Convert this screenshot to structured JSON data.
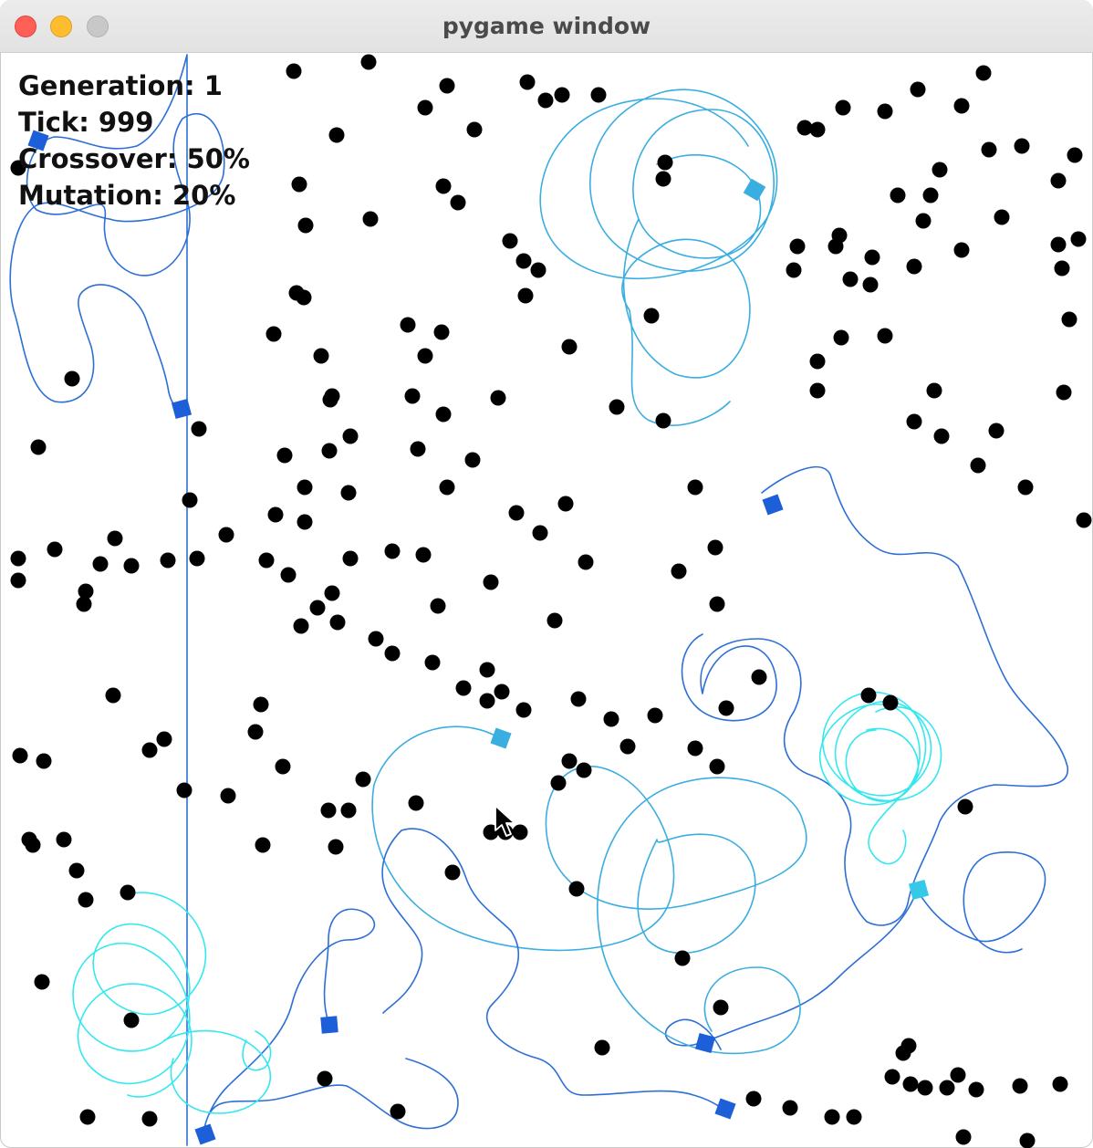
{
  "window": {
    "title": "pygame window"
  },
  "hud": {
    "generation": "Generation: 1",
    "tick": "Tick: 999",
    "crossover": "Crossover: 50%",
    "mutation": "Mutation: 20%"
  },
  "colors": {
    "background": "#ffffff",
    "food": "#000000",
    "trail_dark": "#2d6fd6",
    "trail_mid": "#3aaee0",
    "trail_light": "#35e8f0",
    "agent": "#1c5fd8"
  },
  "icons": {
    "close": "close-traffic-light-icon",
    "minimize": "minimize-traffic-light-icon",
    "zoom": "zoom-traffic-light-icon",
    "cursor": "mouse-pointer-icon",
    "agent": "agent-square-icon",
    "food": "food-dot-icon"
  }
}
